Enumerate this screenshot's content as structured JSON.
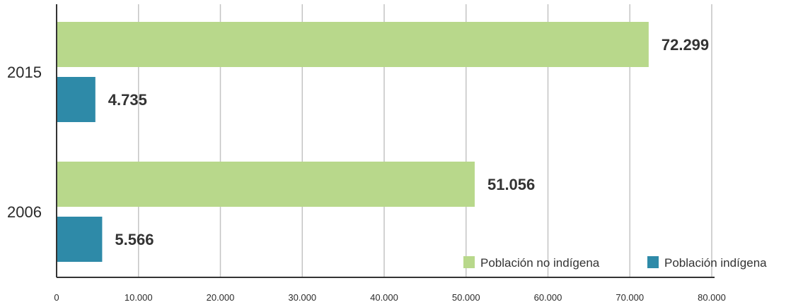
{
  "chart_data": {
    "type": "bar",
    "orientation": "horizontal",
    "categories": [
      "2015",
      "2006"
    ],
    "series": [
      {
        "name": "Población no indígena",
        "color": "#b8d88b",
        "values": [
          72299,
          51056
        ],
        "labels": [
          "72.299",
          "51.056"
        ]
      },
      {
        "name": "Población indígena",
        "color": "#2e8aa8",
        "values": [
          4735,
          5566
        ],
        "labels": [
          "4.735",
          "5.566"
        ]
      }
    ],
    "xlim": [
      0,
      80000
    ],
    "x_ticks": [
      0,
      10000,
      20000,
      30000,
      40000,
      50000,
      60000,
      70000,
      80000
    ],
    "x_tick_labels": [
      "0",
      "10.000",
      "20.000",
      "30.000",
      "40.000",
      "50.000",
      "60.000",
      "70.000",
      "80.000"
    ],
    "grid": "vertical",
    "legend_position": "bottom-right",
    "title": "",
    "xlabel": "",
    "ylabel": ""
  }
}
